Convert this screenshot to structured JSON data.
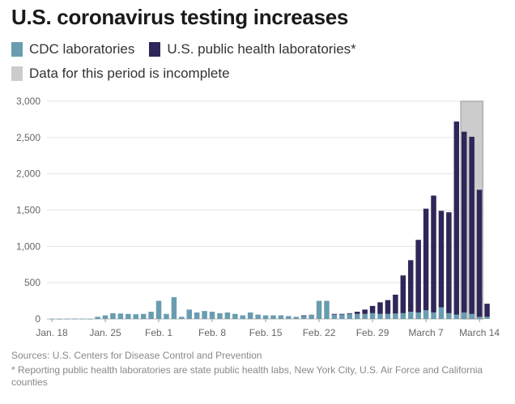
{
  "title": "U.S. coronavirus testing increases",
  "legend": {
    "cdc": "CDC laboratories",
    "phl": "U.S. public health laboratories*",
    "incomplete": "Data for this period is incomplete"
  },
  "colors": {
    "cdc": "#6a9cb0",
    "phl": "#2f2758",
    "incomplete": "#cccccc",
    "grid": "#e6e6e6"
  },
  "footnotes": {
    "sources": "Sources: U.S. Centers for Disease Control and Prevention",
    "note": "* Reporting public health laboratories are state public health labs, New York City, U.S. Air Force and California counties"
  },
  "chart_data": {
    "type": "bar",
    "stacked": true,
    "title": "U.S. coronavirus testing increases",
    "x_tick_labels": [
      "Jan. 18",
      "Jan. 25",
      "Feb. 1",
      "Feb. 8",
      "Feb. 15",
      "Feb. 22",
      "Feb. 29",
      "March 7",
      "March 14"
    ],
    "y_tick_labels": [
      "0",
      "500",
      "1,000",
      "1,500",
      "2,000",
      "2,500",
      "3,000"
    ],
    "ylim": [
      0,
      3000
    ],
    "yticks": [
      0,
      500,
      1000,
      1500,
      2000,
      2500,
      3000
    ],
    "start_date": "Jan. 18",
    "incomplete_period": [
      "March 12",
      "March 14"
    ],
    "series": [
      {
        "name": "CDC laboratories",
        "values": [
          4,
          2,
          3,
          5,
          4,
          3,
          30,
          50,
          80,
          75,
          70,
          65,
          70,
          100,
          250,
          70,
          300,
          30,
          130,
          90,
          110,
          100,
          80,
          90,
          70,
          50,
          90,
          60,
          50,
          50,
          50,
          40,
          30,
          40,
          60,
          250,
          250,
          60,
          60,
          70,
          70,
          70,
          80,
          70,
          70,
          75,
          80,
          100,
          90,
          120,
          90,
          160,
          80,
          60,
          90,
          70,
          30,
          30
        ]
      },
      {
        "name": "U.S. public health laboratories*",
        "values": [
          0,
          0,
          0,
          0,
          0,
          0,
          0,
          0,
          0,
          0,
          0,
          0,
          0,
          0,
          0,
          0,
          0,
          0,
          0,
          0,
          0,
          0,
          0,
          0,
          0,
          0,
          0,
          0,
          0,
          0,
          0,
          0,
          0,
          10,
          0,
          0,
          0,
          10,
          10,
          10,
          30,
          60,
          100,
          160,
          190,
          260,
          520,
          710,
          1000,
          1400,
          1610,
          1330,
          1390,
          2660,
          2490,
          2440,
          1750,
          180
        ]
      }
    ]
  }
}
